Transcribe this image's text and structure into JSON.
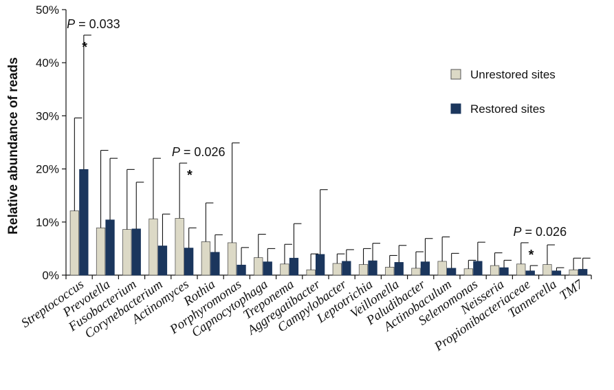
{
  "chart_data": {
    "type": "bar",
    "ylabel": "Relative abundance of reads",
    "ylim": [
      0,
      50
    ],
    "yticks": [
      "0%",
      "10%",
      "20%",
      "30%",
      "40%",
      "50%"
    ],
    "categories": [
      "Streptococcus",
      "Prevotella",
      "Fusobacterium",
      "Corynebacterium",
      "Actinomyces",
      "Rothia",
      "Porphyromonas",
      "Capnocytophaga",
      "Treponema",
      "Aggregatibacter",
      "Campylobacter",
      "Leptotrichia",
      "Veillonella",
      "Paludibacter",
      "Actinobaculum",
      "Selenomonas",
      "Neisseria",
      "Propionibacteriaceae",
      "Tannerella",
      "TM7"
    ],
    "series": [
      {
        "name": "Unrestored sites",
        "color": "#dcd9c6",
        "values": [
          12.1,
          8.9,
          8.6,
          10.6,
          10.7,
          6.3,
          6.1,
          3.3,
          2.1,
          1.0,
          2.2,
          2.0,
          1.5,
          1.3,
          2.6,
          1.2,
          1.8,
          2.1,
          2.0,
          1.0
        ],
        "error": [
          17.5,
          14.6,
          11.3,
          11.4,
          10.4,
          7.3,
          18.8,
          4.4,
          3.7,
          3.0,
          1.8,
          3.0,
          2.2,
          3.1,
          4.6,
          1.6,
          2.4,
          4.0,
          3.7,
          2.2
        ]
      },
      {
        "name": "Restored sites",
        "color": "#1b365d",
        "values": [
          19.9,
          10.4,
          8.7,
          5.5,
          5.1,
          4.3,
          1.9,
          2.5,
          3.2,
          3.9,
          2.6,
          2.7,
          2.4,
          2.5,
          1.3,
          2.6,
          1.4,
          0.8,
          0.8,
          1.1
        ],
        "error": [
          25.3,
          11.6,
          8.8,
          6.0,
          3.8,
          3.3,
          3.3,
          2.5,
          6.5,
          12.2,
          2.2,
          3.3,
          3.2,
          4.4,
          2.8,
          3.6,
          1.4,
          1.0,
          0.6,
          2.1
        ]
      }
    ],
    "annotations": [
      {
        "category_index": 0,
        "p_prefix": "P",
        "p_text": " = 0.033",
        "star": "*"
      },
      {
        "category_index": 4,
        "p_prefix": "P",
        "p_text": " = 0.026",
        "star": "*"
      },
      {
        "category_index": 17,
        "p_prefix": "P",
        "p_text": " = 0.026",
        "star": "*"
      }
    ],
    "legend_position": "right",
    "grid": false
  }
}
